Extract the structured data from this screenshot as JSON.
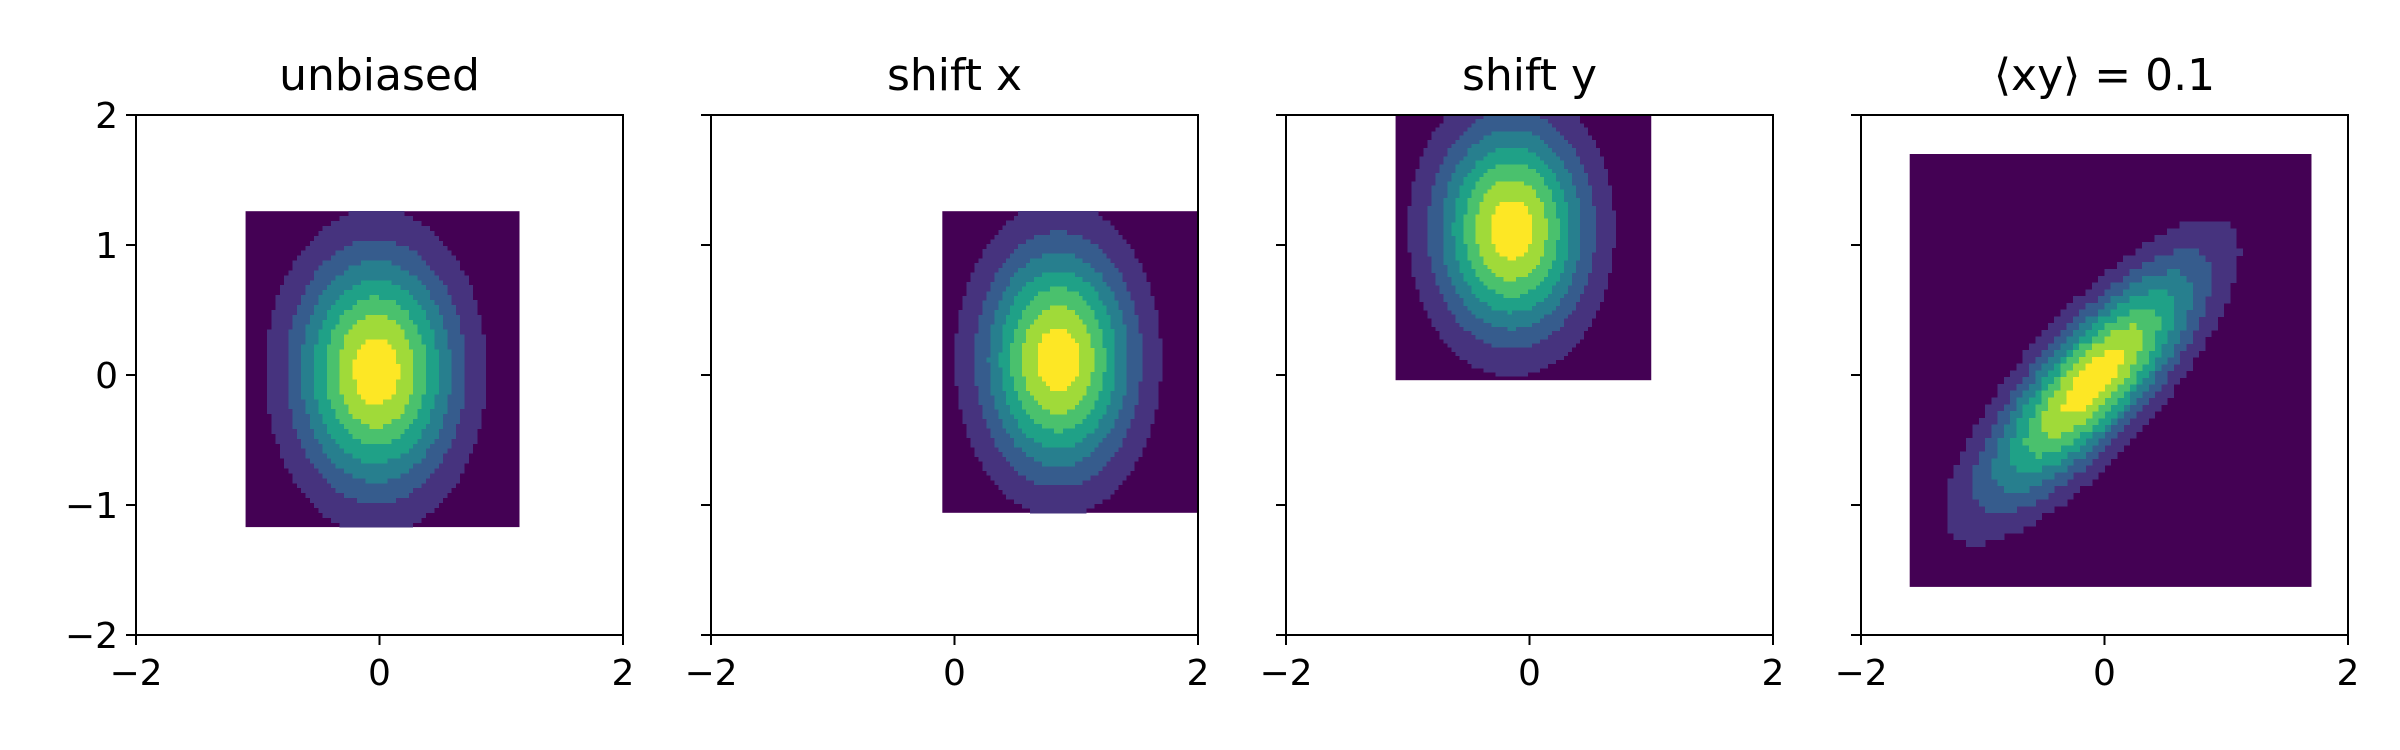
{
  "chart_data": [
    {
      "type": "contour",
      "title": "unbiased",
      "xlim": [
        -2,
        2
      ],
      "ylim": [
        -2,
        2
      ],
      "xticks": [
        -2,
        0,
        2
      ],
      "xtick_labels": [
        "−2",
        "0",
        "2"
      ],
      "yticks": [
        -2,
        -1,
        0,
        1,
        2
      ],
      "ytick_labels": [
        "−2",
        "−1",
        "0",
        "1",
        "2"
      ],
      "show_yticklabels": true,
      "grid": false,
      "background_region": {
        "x": [
          -1.1,
          1.15
        ],
        "y": [
          -1.17,
          1.26
        ]
      },
      "distribution": {
        "center": [
          -0.03,
          0.03
        ],
        "sigma_x": 0.45,
        "sigma_y": 0.62,
        "correlation": 0.0
      },
      "levels": 7,
      "colormap": [
        "#440154",
        "#46337e",
        "#365c8d",
        "#277f8e",
        "#1fa187",
        "#4ac16d",
        "#a0da39",
        "#fde725"
      ]
    },
    {
      "type": "contour",
      "title": "shift x",
      "xlim": [
        -2,
        2
      ],
      "ylim": [
        -2,
        2
      ],
      "xticks": [
        -2,
        0,
        2
      ],
      "xtick_labels": [
        "−2",
        "0",
        "2"
      ],
      "yticks": [
        -2,
        -1,
        0,
        1,
        2
      ],
      "ytick_labels": [
        "",
        "",
        "",
        "",
        ""
      ],
      "show_yticklabels": false,
      "grid": false,
      "background_region": {
        "x": [
          -0.1,
          2.0
        ],
        "y": [
          -1.06,
          1.26
        ]
      },
      "distribution": {
        "center": [
          0.85,
          0.12
        ],
        "sigma_x": 0.42,
        "sigma_y": 0.6,
        "correlation": 0.0
      },
      "levels": 7,
      "colormap": [
        "#440154",
        "#46337e",
        "#365c8d",
        "#277f8e",
        "#1fa187",
        "#4ac16d",
        "#a0da39",
        "#fde725"
      ]
    },
    {
      "type": "contour",
      "title": "shift y",
      "xlim": [
        -2,
        2
      ],
      "ylim": [
        -2,
        2
      ],
      "xticks": [
        -2,
        0,
        2
      ],
      "xtick_labels": [
        "−2",
        "0",
        "2"
      ],
      "yticks": [
        -2,
        -1,
        0,
        1,
        2
      ],
      "ytick_labels": [
        "",
        "",
        "",
        "",
        ""
      ],
      "show_yticklabels": false,
      "grid": false,
      "background_region": {
        "x": [
          -1.1,
          1.0
        ],
        "y": [
          -0.04,
          2.0
        ]
      },
      "distribution": {
        "center": [
          -0.15,
          1.12
        ],
        "sigma_x": 0.42,
        "sigma_y": 0.56,
        "correlation": 0.0
      },
      "levels": 7,
      "colormap": [
        "#440154",
        "#46337e",
        "#365c8d",
        "#277f8e",
        "#1fa187",
        "#4ac16d",
        "#a0da39",
        "#fde725"
      ]
    },
    {
      "type": "contour",
      "title": "⟨xy⟩ = 0.1",
      "xlim": [
        -2,
        2
      ],
      "ylim": [
        -2,
        2
      ],
      "xticks": [
        -2,
        0,
        2
      ],
      "xtick_labels": [
        "−2",
        "0",
        "2"
      ],
      "yticks": [
        -2,
        -1,
        0,
        1,
        2
      ],
      "ytick_labels": [
        "",
        "",
        "",
        "",
        ""
      ],
      "show_yticklabels": false,
      "grid": false,
      "background_region": {
        "x": [
          -1.6,
          1.7
        ],
        "y": [
          -1.63,
          1.7
        ]
      },
      "distribution": {
        "center": [
          -0.1,
          -0.05
        ],
        "sigma_x": 0.6,
        "sigma_y": 0.62,
        "correlation": 0.8
      },
      "levels": 7,
      "colormap": [
        "#440154",
        "#46337e",
        "#365c8d",
        "#277f8e",
        "#1fa187",
        "#4ac16d",
        "#a0da39",
        "#fde725"
      ]
    }
  ]
}
